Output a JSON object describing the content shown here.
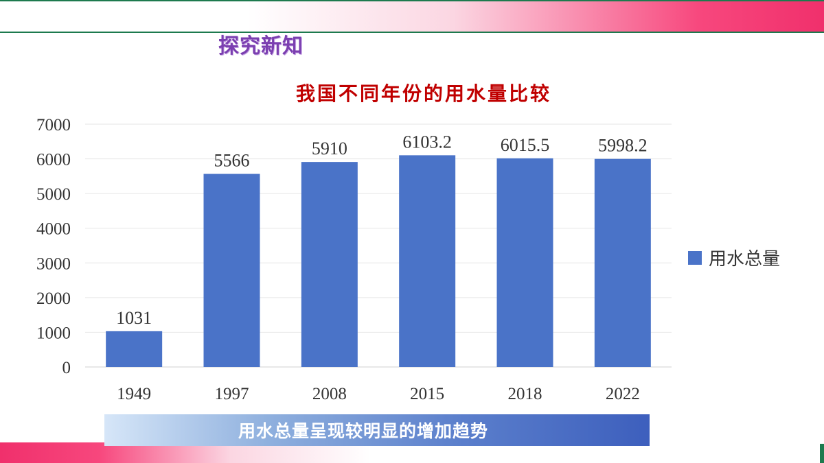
{
  "slide": {
    "section_title": "探究新知",
    "caption": "用水总量呈现较明显的增加趋势"
  },
  "colors": {
    "bar": "#4a73c8",
    "title": "#c00000",
    "section_title": "#7b3fb0",
    "accent_pink": "#f0306c",
    "accent_green": "#1d7a4e"
  },
  "chart_data": {
    "type": "bar",
    "title": "我国不同年份的用水量比较",
    "categories": [
      "1949",
      "1997",
      "2008",
      "2015",
      "2018",
      "2022"
    ],
    "series": [
      {
        "name": "用水总量",
        "values": [
          1031,
          5566,
          5910,
          6103.2,
          6015.5,
          5998.2
        ]
      }
    ],
    "data_labels": [
      "1031",
      "5566",
      "5910",
      "6103.2",
      "6015.5",
      "5998.2"
    ],
    "ylim": [
      0,
      7000
    ],
    "yticks": [
      "0",
      "1000",
      "2000",
      "3000",
      "4000",
      "5000",
      "6000",
      "7000"
    ],
    "xlabel": "",
    "ylabel": "",
    "grid": true,
    "legend_position": "right"
  }
}
